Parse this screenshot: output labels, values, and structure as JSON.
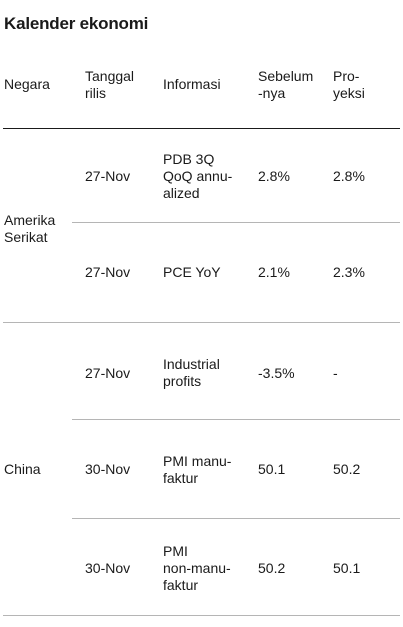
{
  "title": "Kalender ekonomi",
  "headers": {
    "negara": "Negara",
    "tanggal": "Tanggal\nrilis",
    "informasi": "Informasi",
    "sebelumnya": "Sebelum\n-nya",
    "proyeksi": "Pro-\nyeksi"
  },
  "groups": [
    {
      "country": "Amerika\nSerikat",
      "rows": [
        {
          "date": "27-Nov",
          "info": "PDB 3Q\nQoQ annu-\nalized",
          "previous": "2.8%",
          "projection": "2.8%"
        },
        {
          "date": "27-Nov",
          "info": "PCE YoY",
          "previous": "2.1%",
          "projection": "2.3%"
        }
      ]
    },
    {
      "country": "China",
      "rows": [
        {
          "date": "27-Nov",
          "info": "Industrial\nprofits",
          "previous": "-3.5%",
          "projection": "-"
        },
        {
          "date": "30-Nov",
          "info": "PMI manu-\nfaktur",
          "previous": "50.1",
          "projection": "50.2"
        },
        {
          "date": "30-Nov",
          "info": "PMI\nnon-manu-\nfaktur",
          "previous": "50.2",
          "projection": "50.1"
        }
      ]
    }
  ]
}
